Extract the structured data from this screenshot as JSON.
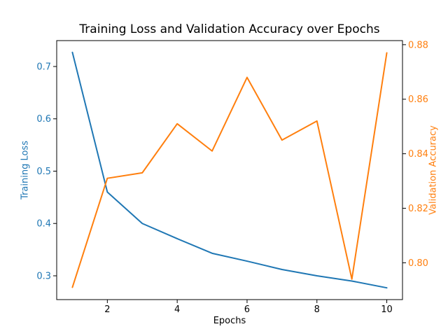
{
  "chart_data": {
    "type": "line",
    "title": "Training Loss and Validation Accuracy over Epochs",
    "xlabel": "Epochs",
    "ylabel_left": "Training Loss",
    "ylabel_right": "Validation Accuracy",
    "x": [
      1,
      2,
      3,
      4,
      5,
      6,
      7,
      8,
      9,
      10
    ],
    "series": [
      {
        "name": "Training Loss",
        "axis": "left",
        "color": "#1f77b4",
        "values": [
          0.727,
          0.46,
          0.4,
          0.371,
          0.343,
          0.328,
          0.312,
          0.3,
          0.29,
          0.277
        ]
      },
      {
        "name": "Validation Accuracy",
        "axis": "right",
        "color": "#ff7f0e",
        "values": [
          0.791,
          0.831,
          0.833,
          0.851,
          0.841,
          0.868,
          0.845,
          0.852,
          0.794,
          0.877
        ]
      }
    ],
    "xlim": [
      0.55,
      10.45
    ],
    "ylim_left": [
      0.2545,
      0.7495
    ],
    "ylim_right": [
      0.7865,
      0.8815
    ],
    "xticks": {
      "values": [
        2,
        4,
        6,
        8,
        10
      ],
      "labels": [
        "2",
        "4",
        "6",
        "8",
        "10"
      ],
      "color": "#000000"
    },
    "yticks_left": {
      "values": [
        0.3,
        0.4,
        0.5,
        0.6,
        0.7
      ],
      "labels": [
        "0.3",
        "0.4",
        "0.5",
        "0.6",
        "0.7"
      ],
      "color": "#1f77b4"
    },
    "yticks_right": {
      "values": [
        0.8,
        0.82,
        0.84,
        0.86,
        0.88
      ],
      "labels": [
        "0.80",
        "0.82",
        "0.84",
        "0.86",
        "0.88"
      ],
      "color": "#ff7f0e"
    },
    "grid": false,
    "legend": "none",
    "background": "#ffffff",
    "spine_color": "#000000",
    "line_width": 2
  }
}
